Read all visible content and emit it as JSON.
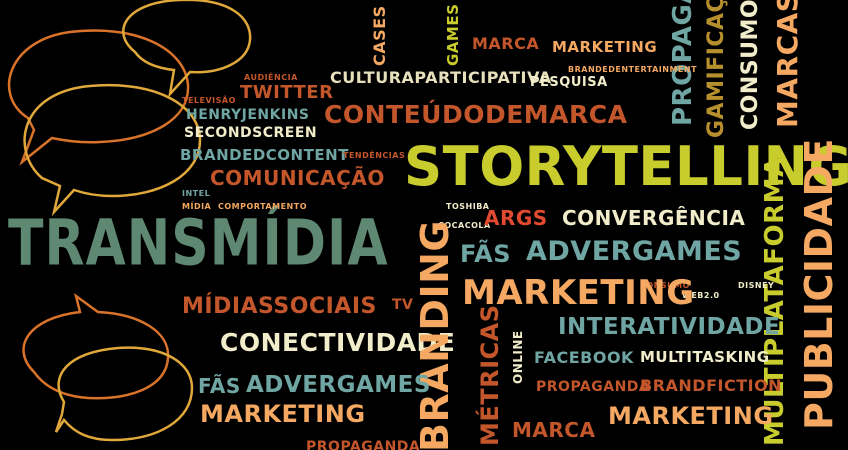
{
  "colors": {
    "background": "#000000",
    "teal": "#6fa6a3",
    "rust": "#c4562b",
    "cream": "#f1ecc9",
    "orange": "#f4a862",
    "olive": "#b6bb2b",
    "green_gray": "#5e8872",
    "bubble_orange": "#d9732a",
    "bubble_gold": "#e0a83a"
  },
  "words": {
    "transmidia": "TRANSMÍDIA",
    "storytelling": "STORYTELLING",
    "conteudodemarca": "CONTEÚDODEMARCA",
    "culturaparticipativa": "CULTURAPARTICIPATIVA",
    "marketing_top": "MARKETING",
    "marca_top": "MARCA",
    "cases": "CASES",
    "games": "GAMES",
    "propaganda_top": "PROPAGANDA",
    "gamificacao": "GAMIFICAÇÃO",
    "consumo": "CONSUMO",
    "marcas": "MARCAS",
    "brandedentertainment": "BRANDEDENTERTAINMENT",
    "pesquisa": "PESQUISA",
    "audiencia": "AUDIÊNCIA",
    "twitter": "TWITTER",
    "televisao": "TELEVISÃO",
    "henryjenkins": "HENRYJENKINS",
    "secondscreen": "SECONDSCREEN",
    "brandedcontent": "BRANDEDCONTENT",
    "tendencias": "TENDÊNCIAS",
    "comunicacao": "COMUNICAÇÃO",
    "intel": "INTEL",
    "midia": "MÍDIA",
    "comportamento": "COMPORTAMENTO",
    "toshiba": "TOSHIBA",
    "cocacola": "COCACOLA",
    "args": "ARGS",
    "convergencia": "CONVERGÊNCIA",
    "fas_mid": "FÃS",
    "advergames_mid": "ADVERGAMES",
    "multiplataforma": "MULTIPLATAFORMA",
    "publicidade": "PUBLICIDADE",
    "consumo_small": "CONSUMO",
    "web20": "WEB2.0",
    "disney": "DISNEY",
    "marketing_mid": "MARKETING",
    "midiassociais": "MÍDIASSOCIAIS",
    "tv": "TV",
    "conectividade": "CONECTIVIDADE",
    "branding": "BRANDING",
    "metricas": "MÉTRICAS",
    "online": "ONLINE",
    "interatividade": "INTERATIVIDADE",
    "facebook": "FACEBOOK",
    "multitasking": "MULTITASKING",
    "propaganda_low": "PROPAGANDA",
    "brandfiction": "BRANDFICTION",
    "fas_low": "FÃS",
    "advergames_low": "ADVERGAMES",
    "marketing_low": "MARKETING",
    "marca_low": "MARCA",
    "marketing_low_right": "MARKETING",
    "propaganda_bottom": "PROPAGANDA"
  }
}
